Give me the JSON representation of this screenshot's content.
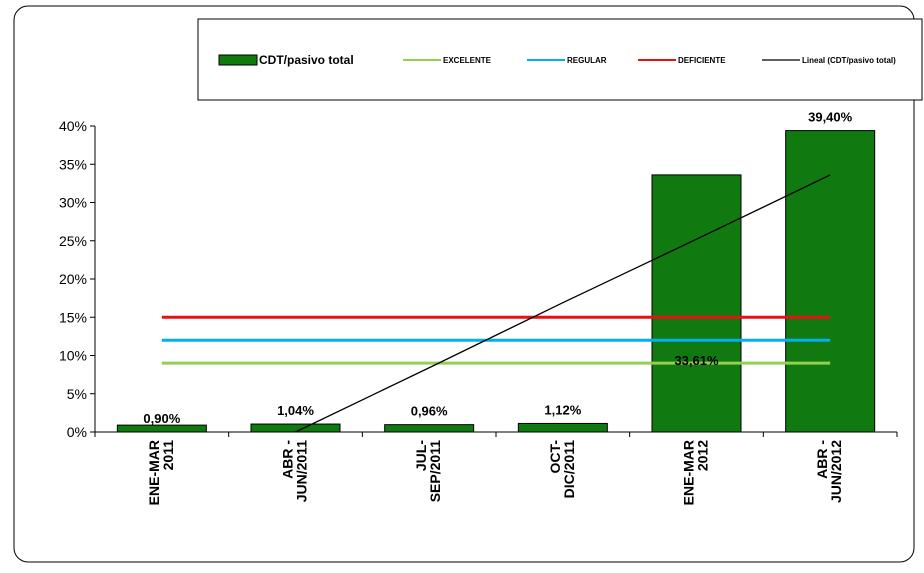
{
  "chart_data": {
    "type": "bar",
    "categories": [
      "ENE-MAR 2011",
      "ABR - JUN/2011",
      "JUL-SEP/2011",
      "OCT-DIC/2011",
      "ENE-MAR 2012",
      "ABR - JUN/2012"
    ],
    "category_lines": [
      [
        "ENE-MAR",
        "2011"
      ],
      [
        "ABR -",
        "JUN/2011"
      ],
      [
        "JUL-",
        "SEP/2011"
      ],
      [
        "OCT-",
        "DIC/2011"
      ],
      [
        "ENE-MAR",
        "2012"
      ],
      [
        "ABR -",
        "JUN/2012"
      ]
    ],
    "series": [
      {
        "name": "CDT/pasivo total",
        "kind": "bar",
        "color": "#107a10",
        "values": [
          0.9,
          1.04,
          0.96,
          1.12,
          33.61,
          39.4
        ],
        "data_labels": [
          "0,90%",
          "1,04%",
          "0,96%",
          "1,12%",
          "33,61%",
          "39,40%"
        ]
      },
      {
        "name": "EXCELENTE",
        "kind": "line",
        "color": "#92d050",
        "values": [
          9,
          9,
          9,
          9,
          9,
          9
        ]
      },
      {
        "name": "REGULAR",
        "kind": "line",
        "color": "#00b0f0",
        "values": [
          12,
          12,
          12,
          12,
          12,
          12
        ]
      },
      {
        "name": "DEFICIENTE",
        "kind": "line",
        "color": "#e81010",
        "values": [
          15,
          15,
          15,
          15,
          15,
          15
        ]
      },
      {
        "name": "Lineal (CDT/pasivo total)",
        "kind": "trendline",
        "color": "#000000",
        "values": [
          -12.4,
          0.0,
          8.4,
          16.9,
          25.2,
          33.6
        ]
      }
    ],
    "y_ticks": [
      "0%",
      "5%",
      "10%",
      "15%",
      "20%",
      "25%",
      "30%",
      "35%",
      "40%"
    ],
    "ylim": [
      0,
      40
    ],
    "legend_position": "top",
    "grid": false
  }
}
